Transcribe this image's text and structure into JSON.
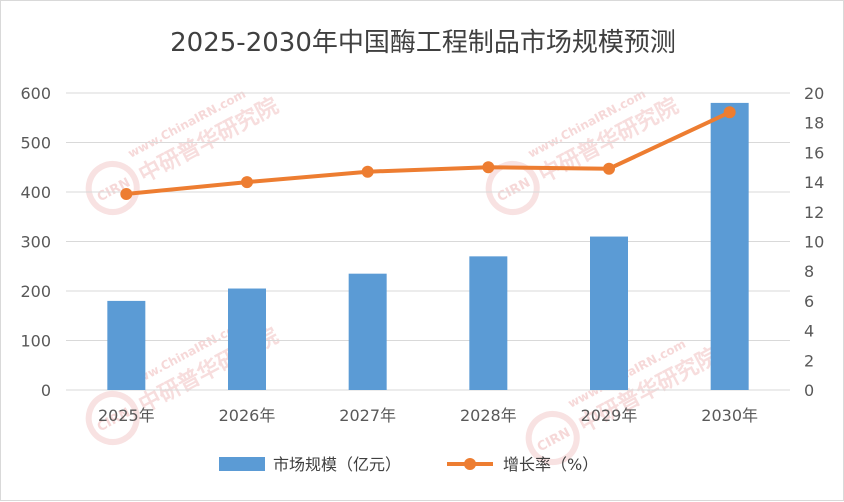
{
  "chart_data": {
    "type": "bar",
    "title": "2025-2030年中国酶工程制品市场规模预测",
    "categories": [
      "2025年",
      "2026年",
      "2027年",
      "2028年",
      "2029年",
      "2030年"
    ],
    "series": [
      {
        "name": "市场规模（亿元）",
        "type": "bar",
        "axis": "left",
        "color": "#5b9bd5",
        "values": [
          180,
          205,
          235,
          270,
          310,
          580
        ]
      },
      {
        "name": "增长率（%）",
        "type": "line",
        "axis": "right",
        "color": "#ed7d31",
        "values": [
          13.2,
          14.0,
          14.7,
          15.0,
          14.9,
          18.7
        ]
      }
    ],
    "y_left": {
      "ylim": [
        0,
        600
      ],
      "ticks": [
        "0",
        "100",
        "200",
        "300",
        "400",
        "500",
        "600"
      ]
    },
    "y_right": {
      "ylim": [
        0,
        20
      ],
      "ticks": [
        "0",
        "2",
        "4",
        "6",
        "8",
        "10",
        "12",
        "14",
        "16",
        "18",
        "20"
      ]
    },
    "grid": true,
    "legend_position": "bottom"
  },
  "watermark": {
    "text": "中研普华研究院",
    "url_text": "www.ChinaIRN.com",
    "logo_text": "CIRN"
  }
}
